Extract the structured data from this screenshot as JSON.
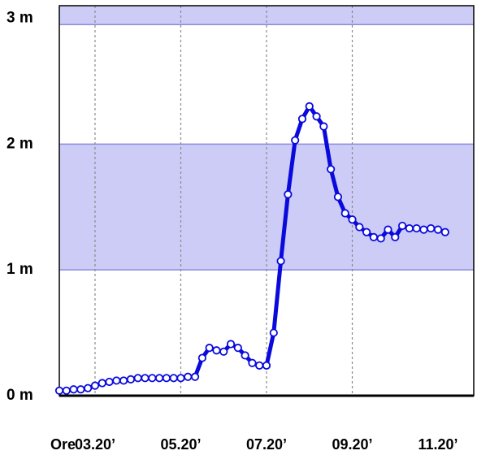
{
  "chart_data": {
    "type": "line",
    "title": "",
    "xlabel": "Ore",
    "ylabel": "",
    "x_ticks": [
      "03.20’",
      "05.20’",
      "07.20’",
      "09.20’",
      "11.20’"
    ],
    "y_ticks": [
      "0 m",
      "1 m",
      "2 m",
      "3 m"
    ],
    "ylim": [
      0,
      3.1
    ],
    "xlim": [
      "02:30",
      "12:10"
    ],
    "grid": {
      "vertical": "dotted",
      "horizontal_bands": true
    },
    "bands": [
      {
        "from": 1.0,
        "to": 2.0,
        "color": "#ccccf6"
      },
      {
        "from": 2.95,
        "to": 3.1,
        "color": "#ccccf6"
      }
    ],
    "series_color": "#0a0adc",
    "series": [
      {
        "name": "",
        "x": [
          "02:30",
          "02:40",
          "02:50",
          "03:00",
          "03:10",
          "03:20",
          "03:30",
          "03:40",
          "03:50",
          "04:00",
          "04:10",
          "04:20",
          "04:30",
          "04:40",
          "04:50",
          "05:00",
          "05:10",
          "05:20",
          "05:30",
          "05:40",
          "05:50",
          "06:00",
          "06:10",
          "06:20",
          "06:30",
          "06:40",
          "06:50",
          "07:00",
          "07:10",
          "07:20",
          "07:30",
          "07:40",
          "07:50",
          "08:00",
          "08:10",
          "08:20",
          "08:30",
          "08:40",
          "08:50",
          "09:00",
          "09:10",
          "09:20",
          "09:30",
          "09:40",
          "09:50",
          "10:00",
          "10:10",
          "10:20",
          "10:30",
          "10:40",
          "10:50",
          "11:00",
          "11:10",
          "11:20",
          "11:30"
        ],
        "y": [
          0.04,
          0.04,
          0.05,
          0.05,
          0.06,
          0.08,
          0.1,
          0.11,
          0.12,
          0.12,
          0.13,
          0.14,
          0.14,
          0.14,
          0.14,
          0.14,
          0.14,
          0.14,
          0.15,
          0.15,
          0.3,
          0.38,
          0.36,
          0.35,
          0.41,
          0.38,
          0.32,
          0.26,
          0.24,
          0.24,
          0.5,
          1.07,
          1.6,
          2.03,
          2.2,
          2.3,
          2.22,
          2.14,
          1.8,
          1.58,
          1.45,
          1.4,
          1.34,
          1.3,
          1.26,
          1.25,
          1.32,
          1.26,
          1.35,
          1.33,
          1.33,
          1.32,
          1.33,
          1.32,
          1.3
        ]
      }
    ]
  }
}
